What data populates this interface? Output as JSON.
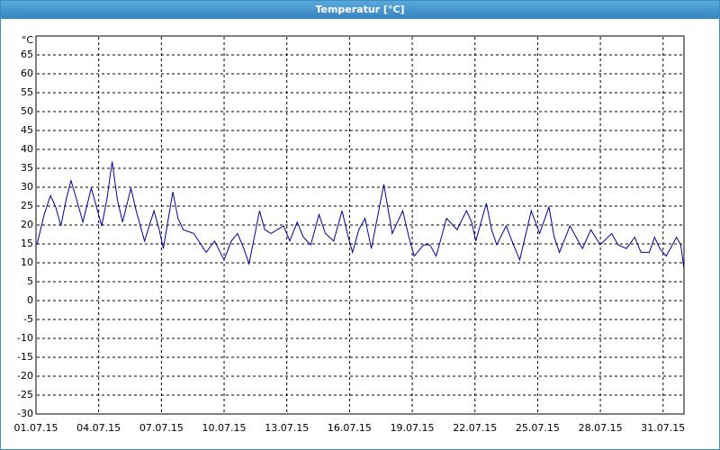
{
  "chart_data": {
    "type": "line",
    "title": "Temperatur [°C]",
    "x": [
      0,
      0.35,
      0.65,
      0.9,
      1.15,
      1.4,
      1.63,
      1.9,
      2.2,
      2.6,
      2.85,
      3.1,
      3.35,
      3.6,
      3.85,
      4.1,
      4.5,
      4.75,
      5.15,
      5.6,
      5.85,
      6.05,
      6.5,
      6.75,
      7.0,
      7.5,
      8.1,
      8.5,
      8.95,
      9.3,
      9.6,
      9.9,
      10.15,
      10.65,
      10.9,
      11.2,
      11.5,
      11.8,
      12.1,
      12.45,
      12.75,
      13.1,
      13.5,
      13.8,
      14.0,
      14.2,
      14.6,
      14.85,
      15.1,
      15.4,
      15.7,
      16.0,
      16.6,
      17.0,
      17.5,
      17.8,
      18.05,
      18.5,
      18.8,
      19.1,
      19.6,
      20.1,
      20.55,
      20.8,
      21.0,
      21.5,
      21.75,
      22.0,
      22.45,
      22.8,
      23.1,
      23.65,
      24.05,
      24.5,
      24.75,
      25.0,
      25.5,
      25.8,
      26.1,
      26.5,
      26.95,
      27.5,
      27.8,
      28.2,
      28.6,
      28.9,
      29.3,
      29.55,
      29.8,
      30.1,
      30.6,
      30.8,
      30.95
    ],
    "values": [
      15,
      23,
      28,
      25,
      20,
      27,
      32,
      27,
      21,
      30,
      25,
      20,
      27,
      37,
      27,
      21,
      30,
      24,
      16,
      24,
      19,
      14,
      29,
      22,
      19,
      18,
      13,
      16,
      11,
      16,
      18,
      14,
      10,
      24,
      19,
      18,
      19,
      20,
      16,
      21,
      17,
      15,
      23,
      18,
      17,
      16,
      24,
      18,
      13,
      19,
      22,
      14,
      31,
      18,
      24,
      17,
      12,
      15,
      15,
      12,
      22,
      19,
      24,
      21,
      16,
      26,
      19,
      15,
      20,
      15,
      11,
      24,
      18,
      25,
      17,
      13,
      20,
      17,
      14,
      19,
      15,
      18,
      15,
      14,
      17,
      13,
      13,
      17,
      14,
      12,
      17,
      15,
      9
    ],
    "color": "#0000a0",
    "xlim": [
      0,
      31
    ],
    "xticks": [
      {
        "value": 0,
        "label": "01.07.15"
      },
      {
        "value": 3,
        "label": "04.07.15"
      },
      {
        "value": 6,
        "label": "07.07.15"
      },
      {
        "value": 9,
        "label": "10.07.15"
      },
      {
        "value": 12,
        "label": "13.07.15"
      },
      {
        "value": 15,
        "label": "16.07.15"
      },
      {
        "value": 18,
        "label": "19.07.15"
      },
      {
        "value": 21,
        "label": "22.07.15"
      },
      {
        "value": 24,
        "label": "25.07.15"
      },
      {
        "value": 27,
        "label": "28.07.15"
      },
      {
        "value": 30,
        "label": "31.07.15"
      }
    ],
    "ylim": [
      -30,
      70
    ],
    "yticks": [
      -30,
      -25,
      -20,
      -15,
      -10,
      -5,
      0,
      5,
      10,
      15,
      20,
      25,
      30,
      35,
      40,
      45,
      50,
      55,
      60,
      65,
      {
        "value": 70,
        "label": "°C"
      }
    ],
    "grid": true
  }
}
